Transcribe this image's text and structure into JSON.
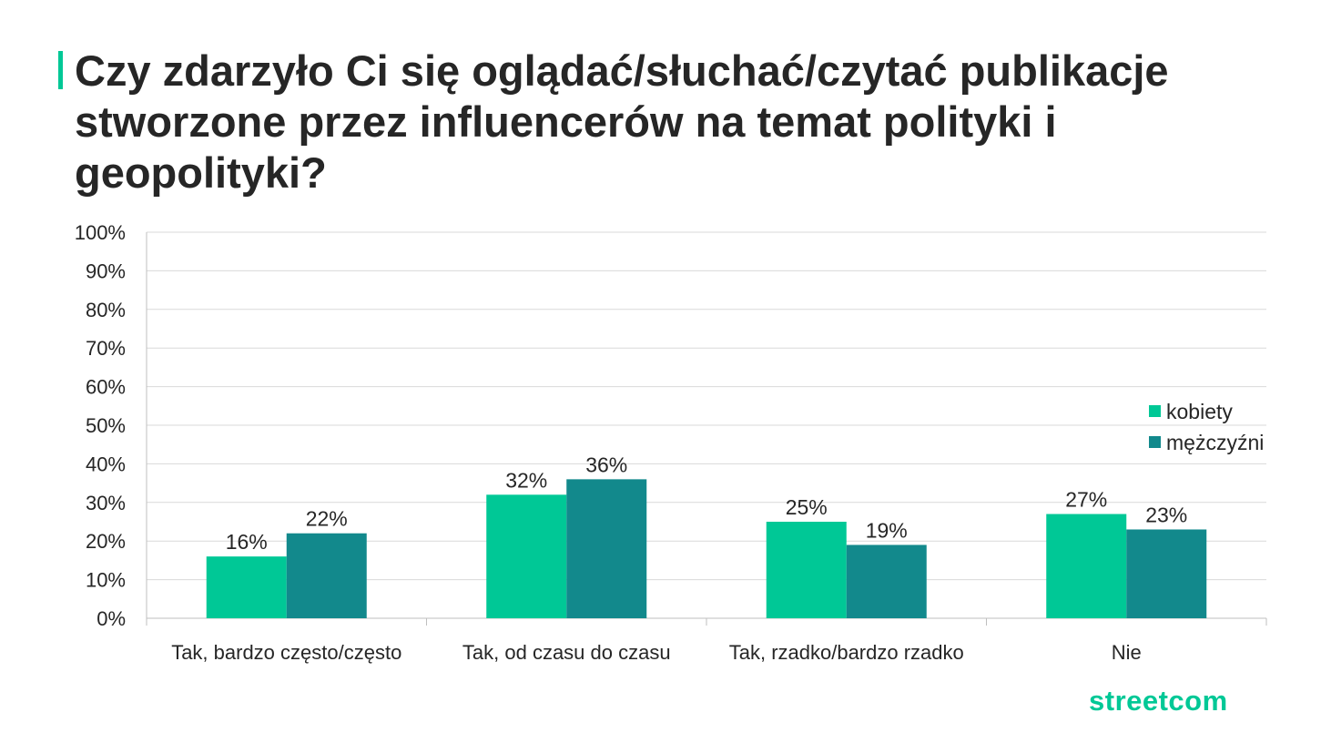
{
  "title": "Czy zdarzyło Ci się oglądać/słuchać/czytać publikacje stworzone przez influencerów na temat polityki i geopolityki?",
  "brand": "streetcom",
  "colors": {
    "accent": "#00c896",
    "kobiety": "#00c896",
    "mezczyzni": "#12898c",
    "grid": "#d9d9d9",
    "axis": "#bfbfbf",
    "text": "#262626"
  },
  "chart_data": {
    "type": "bar",
    "categories": [
      "Tak, bardzo często/często",
      "Tak, od czasu do czasu",
      "Tak, rzadko/bardzo rzadko",
      "Nie"
    ],
    "series": [
      {
        "name": "kobiety",
        "values": [
          16,
          32,
          25,
          27
        ],
        "labels": [
          "16%",
          "32%",
          "25%",
          "27%"
        ],
        "color": "#00c896"
      },
      {
        "name": "mężczyźni",
        "values": [
          22,
          36,
          19,
          23
        ],
        "labels": [
          "22%",
          "36%",
          "19%",
          "23%"
        ],
        "color": "#12898c"
      }
    ],
    "ylim": [
      0,
      100
    ],
    "yticks": [
      "0%",
      "10%",
      "20%",
      "30%",
      "40%",
      "50%",
      "60%",
      "70%",
      "80%",
      "90%",
      "100%"
    ],
    "grid": true,
    "legend_position": "right"
  }
}
